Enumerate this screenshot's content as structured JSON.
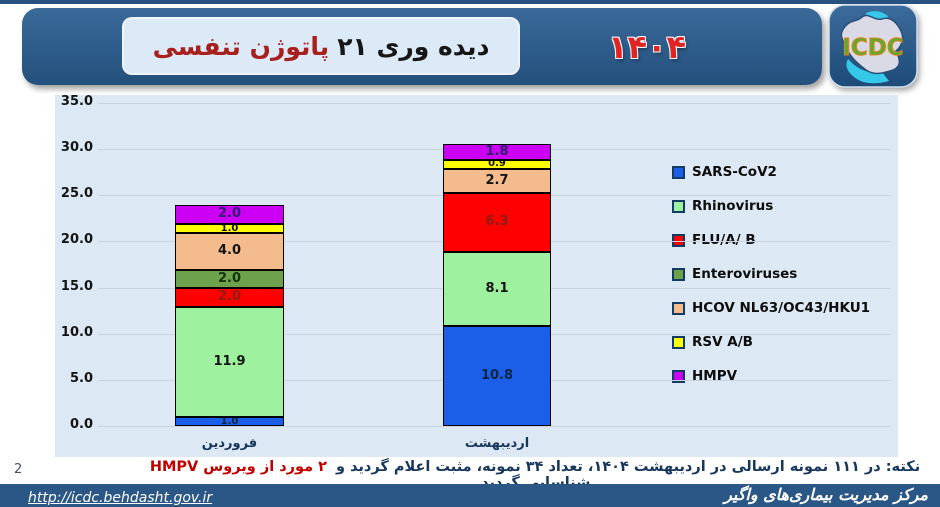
{
  "header": {
    "title_black": "دیده وری ۲۱",
    "title_red": "پاتوژن تنفسی",
    "year": "۱۴۰۴",
    "logo_text": "ICDC"
  },
  "chart_data": {
    "type": "bar",
    "stacked": true,
    "title": "دیده وری ۲۱ پاتوژن تنفسی ۱۴۰۴",
    "categories": [
      "فروردین",
      "اردیبهشت"
    ],
    "series": [
      {
        "name": "SARS-CoV2",
        "color": "#1b5fe8",
        "label_color": "#10243f",
        "values": [
          1.0,
          10.8
        ],
        "labels": [
          "1.0",
          "10.8"
        ]
      },
      {
        "name": "Rhinovirus",
        "color": "#9ef19e",
        "label_color": "#141414",
        "values": [
          11.9,
          8.1
        ],
        "labels": [
          "11.9",
          "8.1"
        ]
      },
      {
        "name": "FLU/A/ B",
        "color": "#fe0000",
        "label_color": "#8c1e14",
        "values": [
          2.0,
          6.3
        ],
        "labels": [
          "2.0",
          "6.3"
        ]
      },
      {
        "name": "Enteroviruses",
        "color": "#6da14c",
        "label_color": "#12320e",
        "values": [
          2.0,
          0
        ],
        "labels": [
          "2.0",
          ""
        ]
      },
      {
        "name": "HCOV NL63/OC43/HKU1",
        "color": "#f4bb8c",
        "label_color": "#141414",
        "values": [
          4.0,
          2.7
        ],
        "labels": [
          "4.0",
          "2.7"
        ]
      },
      {
        "name": "RSV A/B",
        "color": "#ffff00",
        "label_color": "#141414",
        "values": [
          1.0,
          0.9
        ],
        "labels": [
          "1.0",
          "0.9"
        ]
      },
      {
        "name": "HMPV",
        "color": "#cb00f5",
        "label_color": "#32206e",
        "values": [
          2.0,
          1.8
        ],
        "labels": [
          "2.0",
          "1.8"
        ]
      }
    ],
    "ylim": [
      0,
      35
    ],
    "yticks": [
      "35.0",
      "30.0",
      "25.0",
      "20.0",
      "15.0",
      "10.0",
      "5.0",
      "0.0"
    ],
    "grid": true,
    "legend_position": "right"
  },
  "note": {
    "prefix": "نکته: در ۱۱۱ نمونه ارسالی در اردیبهشت ۱۴۰۴، تعداد ۳۴ نمونه، مثبت اعلام گردید و",
    "highlight": "۲ مورد از ویروس HMPV",
    "suffix": "شناسایی گردید."
  },
  "page_number": "2",
  "footer": {
    "url": "http://icdc.behdasht.gov.ir",
    "org": "مرکز مدیریت بیماری‌های واگیر"
  },
  "colors": {
    "header_navy": "#2b5786",
    "chart_background": "#dce8f4",
    "title_red": "#a8201d",
    "year_red": "#e02424",
    "note_navy": "#17375d",
    "note_red": "#c00000",
    "gridline": "#c8d3e0"
  }
}
